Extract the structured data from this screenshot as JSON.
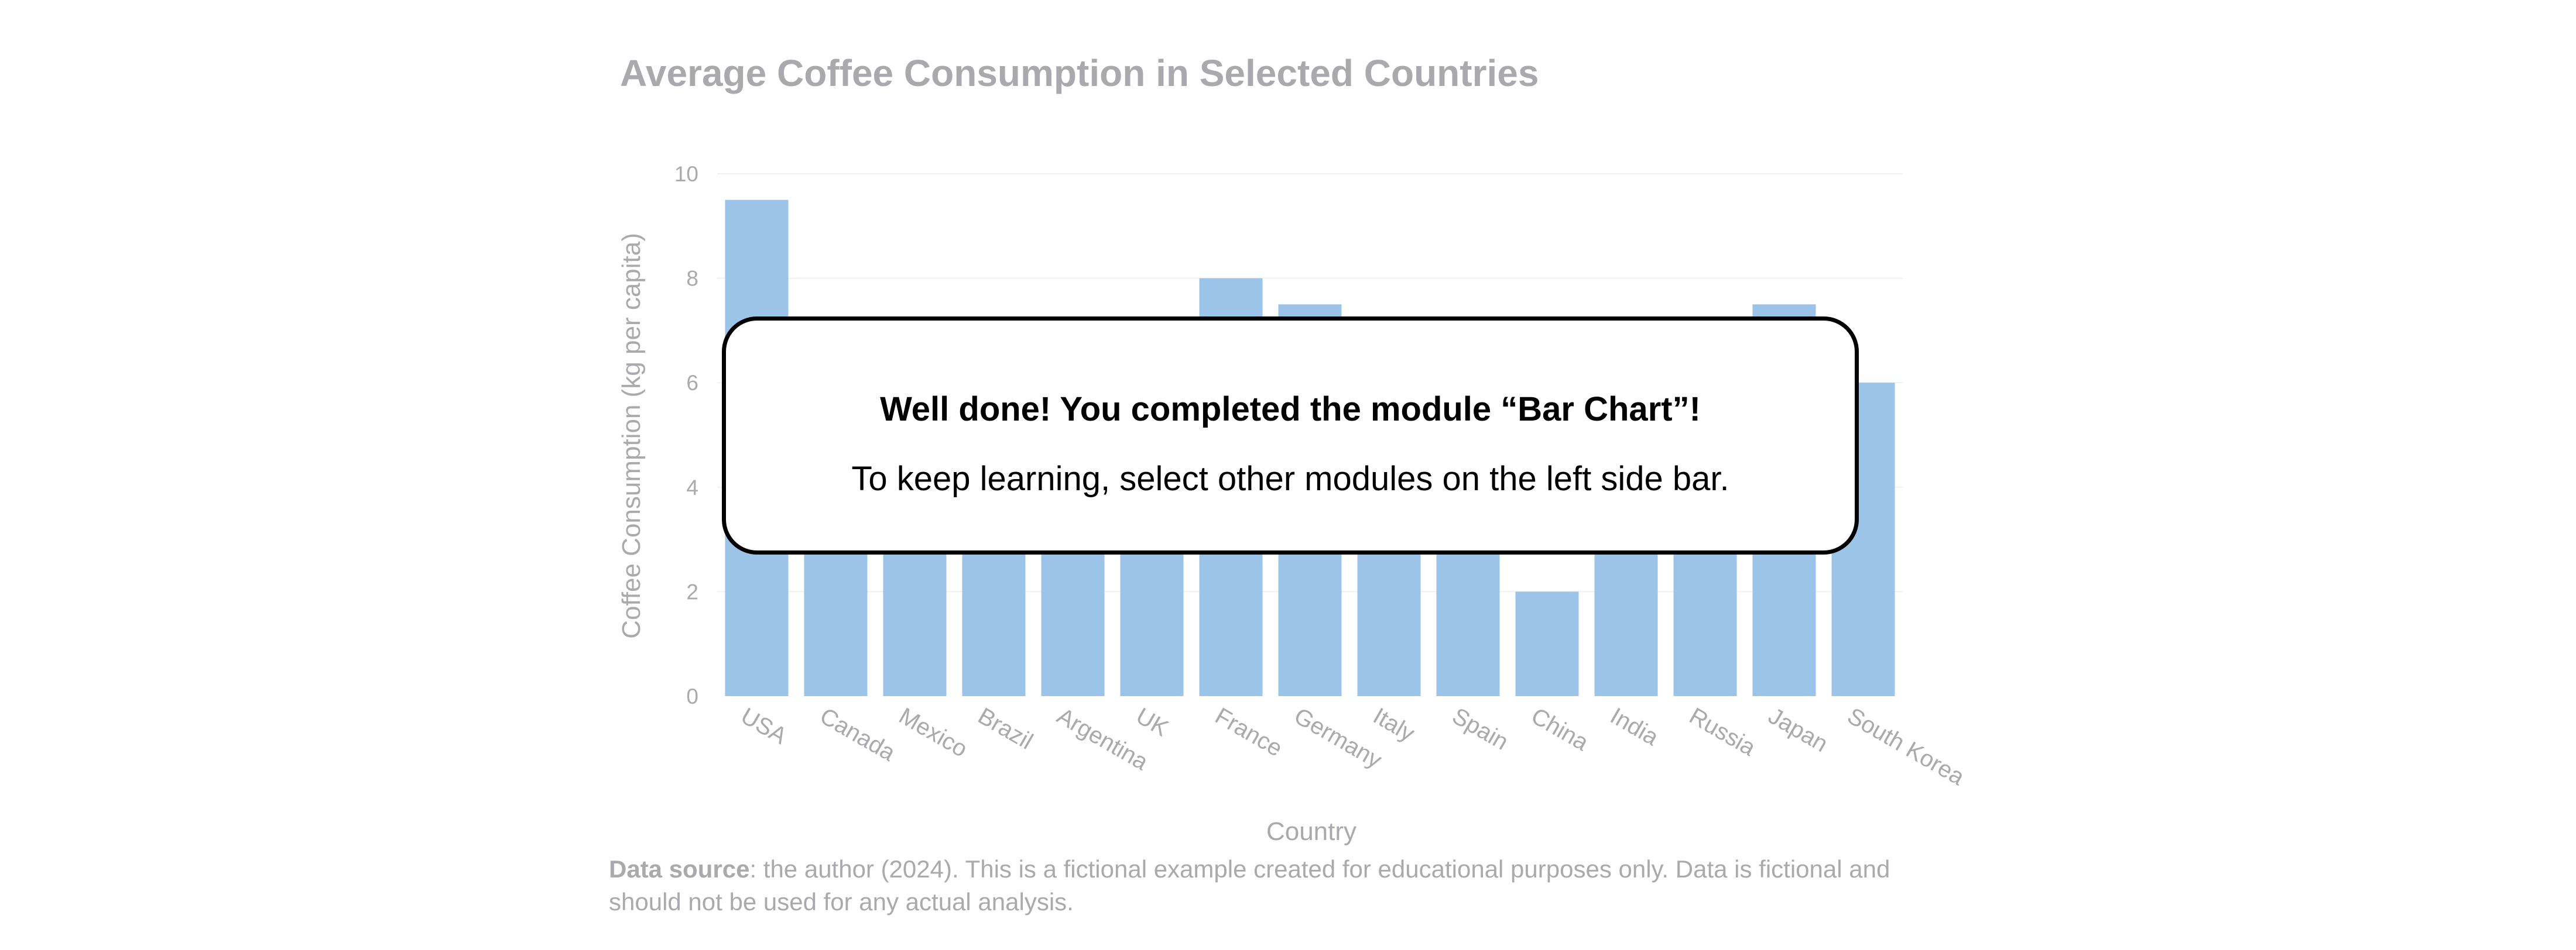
{
  "chart_data": {
    "type": "bar",
    "title": "Average Coffee Consumption in Selected Countries",
    "xlabel": "Country",
    "ylabel": "Coffee Consumption (kg per capita)",
    "ylim": [
      0,
      10
    ],
    "yticks": [
      0,
      2,
      4,
      6,
      8,
      10
    ],
    "grid": true,
    "bar_color": "#9cc3e8",
    "categories": [
      "USA",
      "Canada",
      "Mexico",
      "Brazil",
      "Argentina",
      "UK",
      "France",
      "Germany",
      "Italy",
      "Spain",
      "China",
      "India",
      "Russia",
      "Japan",
      "South Korea"
    ],
    "values": [
      9.5,
      6.5,
      6.5,
      6.5,
      6.5,
      6.5,
      8.0,
      7.5,
      6.5,
      6.5,
      2.0,
      6.5,
      6.5,
      7.5,
      6.0
    ]
  },
  "source": {
    "label": "Data source",
    "text": ": the author (2024). This is a fictional example created for educational purposes only. Data is fictional and should not be used for any actual analysis."
  },
  "modal": {
    "title": "Well done! You completed the module “Bar Chart”!",
    "message": "To keep learning, select other modules on the left side bar."
  }
}
